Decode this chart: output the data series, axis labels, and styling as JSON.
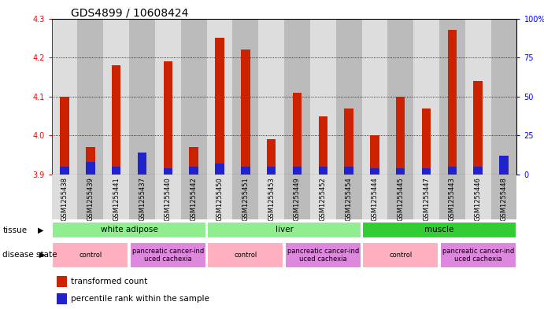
{
  "title": "GDS4899 / 10608424",
  "samples": [
    "GSM1255438",
    "GSM1255439",
    "GSM1255441",
    "GSM1255437",
    "GSM1255440",
    "GSM1255442",
    "GSM1255450",
    "GSM1255451",
    "GSM1255453",
    "GSM1255449",
    "GSM1255452",
    "GSM1255454",
    "GSM1255444",
    "GSM1255445",
    "GSM1255447",
    "GSM1255443",
    "GSM1255446",
    "GSM1255448"
  ],
  "red_values": [
    4.1,
    3.97,
    4.18,
    3.91,
    4.19,
    3.97,
    4.25,
    4.22,
    3.99,
    4.11,
    4.05,
    4.07,
    4.0,
    4.1,
    4.07,
    4.27,
    4.14,
    3.91
  ],
  "blue_percentile": [
    5,
    8,
    5,
    14,
    4,
    5,
    7,
    5,
    5,
    5,
    5,
    5,
    4,
    4,
    4,
    5,
    5,
    12
  ],
  "ylim_left": [
    3.9,
    4.3
  ],
  "ylim_right": [
    0,
    100
  ],
  "yticks_left": [
    3.9,
    4.0,
    4.1,
    4.2,
    4.3
  ],
  "yticks_right": [
    0,
    25,
    50,
    75,
    100
  ],
  "tissue_groups": [
    {
      "label": "white adipose",
      "start": 0,
      "end": 6,
      "color": "#90EE90"
    },
    {
      "label": "liver",
      "start": 6,
      "end": 12,
      "color": "#90EE90"
    },
    {
      "label": "muscle",
      "start": 12,
      "end": 18,
      "color": "#32CD32"
    }
  ],
  "disease_groups": [
    {
      "label": "control",
      "start": 0,
      "end": 3,
      "color": "#FFB0C0"
    },
    {
      "label": "pancreatic cancer-ind\nuced cachexia",
      "start": 3,
      "end": 6,
      "color": "#DD88DD"
    },
    {
      "label": "control",
      "start": 6,
      "end": 9,
      "color": "#FFB0C0"
    },
    {
      "label": "pancreatic cancer-ind\nuced cachexia",
      "start": 9,
      "end": 12,
      "color": "#DD88DD"
    },
    {
      "label": "control",
      "start": 12,
      "end": 15,
      "color": "#FFB0C0"
    },
    {
      "label": "pancreatic cancer-ind\nuced cachexia",
      "start": 15,
      "end": 18,
      "color": "#DD88DD"
    }
  ],
  "bar_width": 0.35,
  "red_color": "#CC2200",
  "blue_color": "#2222CC",
  "background_color": "#ffffff",
  "plot_bg_color": "#ffffff",
  "sample_bg_even": "#DDDDDD",
  "sample_bg_odd": "#BBBBBB",
  "title_fontsize": 10,
  "tick_fontsize": 7,
  "sample_fontsize": 6
}
